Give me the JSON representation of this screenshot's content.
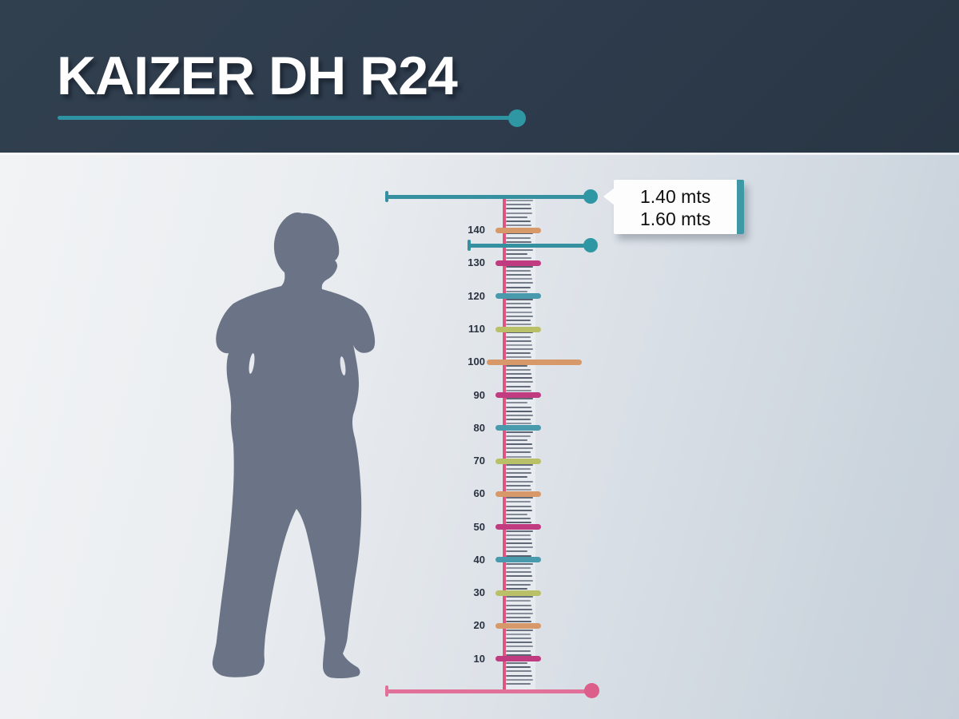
{
  "header": {
    "title": "KAIZER DH R24",
    "bg_color": "#2d3b4c",
    "accent_color": "#2e93a3",
    "accent_dot_color": "#2f96a4"
  },
  "callout": {
    "line1": "1.40 mts",
    "line2": "1.60 mts",
    "strip_color": "#3e98a6"
  },
  "figure": {
    "description": "child-silhouette",
    "color": "#6b7486"
  },
  "ruler": {
    "spine_color": "#e0547f",
    "tick_color": "#3a4354",
    "label_color": "#2a3140",
    "marks": [
      {
        "value": "10",
        "color": "#c13b80"
      },
      {
        "value": "20",
        "color": "#d8996a"
      },
      {
        "value": "30",
        "color": "#b9c068"
      },
      {
        "value": "40",
        "color": "#4a9aae"
      },
      {
        "value": "50",
        "color": "#c13b80"
      },
      {
        "value": "60",
        "color": "#d8996a"
      },
      {
        "value": "70",
        "color": "#b9c068"
      },
      {
        "value": "80",
        "color": "#4a9aae"
      },
      {
        "value": "90",
        "color": "#c13b80"
      },
      {
        "value": "100",
        "color": "#d8996a",
        "wide": true
      },
      {
        "value": "110",
        "color": "#b9c068"
      },
      {
        "value": "120",
        "color": "#4a9aae"
      },
      {
        "value": "130",
        "color": "#c13b80"
      },
      {
        "value": "140",
        "color": "#d8996a"
      }
    ]
  },
  "measure_lines": {
    "top": {
      "label": "upper-height-limit",
      "color": "#35919f",
      "dot_color": "#2f96a4"
    },
    "mid": {
      "label": "lower-height-limit",
      "color": "#35919f",
      "dot_color": "#2f96a4"
    },
    "bottom": {
      "label": "ground-line",
      "color": "#e2719a",
      "dot_color": "#dc5e8b"
    }
  }
}
